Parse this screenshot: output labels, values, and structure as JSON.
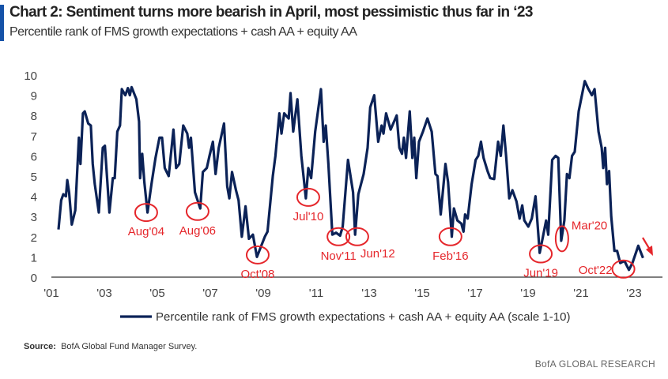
{
  "header": {
    "title": "Chart 2: Sentiment turns more bearish in April, most pessimistic thus far in ‘23",
    "subtitle": "Percentile rank of FMS growth expectations + cash AA + equity AA"
  },
  "footer": {
    "source_label": "Source:",
    "source_text": "BofA Global Fund Manager Survey.",
    "brand": "BofA GLOBAL RESEARCH"
  },
  "colors": {
    "line": "#0b2257",
    "annotation": "#e5262b",
    "accent": "#1552a8"
  },
  "chart_data": {
    "type": "line",
    "title": "Chart 2: Sentiment turns more bearish in April, most pessimistic thus far in ‘23",
    "xlabel": "",
    "ylabel": "",
    "xlim": [
      2001,
      2024
    ],
    "ylim": [
      0,
      10
    ],
    "grid": false,
    "legend_position": "bottom",
    "x_ticks": [
      {
        "v": 2001,
        "label": "'01"
      },
      {
        "v": 2003,
        "label": "'03"
      },
      {
        "v": 2005,
        "label": "'05"
      },
      {
        "v": 2007,
        "label": "'07"
      },
      {
        "v": 2009,
        "label": "'09"
      },
      {
        "v": 2011,
        "label": "'11"
      },
      {
        "v": 2013,
        "label": "'13"
      },
      {
        "v": 2015,
        "label": "'15"
      },
      {
        "v": 2017,
        "label": "'17"
      },
      {
        "v": 2019,
        "label": "'19"
      },
      {
        "v": 2021,
        "label": "'21"
      },
      {
        "v": 2023,
        "label": "'23"
      }
    ],
    "y_ticks": [
      "0",
      "1",
      "2",
      "3",
      "4",
      "5",
      "6",
      "7",
      "8",
      "9",
      "10"
    ],
    "series": [
      {
        "name": "Percentile rank of FMS growth expectations + cash AA + equity AA (scale 1-10)",
        "x": [
          2001.27,
          2001.37,
          2001.45,
          2001.55,
          2001.6,
          2001.67,
          2001.77,
          2001.9,
          2002.04,
          2002.1,
          2002.19,
          2002.26,
          2002.39,
          2002.49,
          2002.56,
          2002.64,
          2002.79,
          2002.94,
          2003.02,
          2003.19,
          2003.32,
          2003.39,
          2003.49,
          2003.59,
          2003.66,
          2003.79,
          2003.89,
          2003.96,
          2004.03,
          2004.21,
          2004.31,
          2004.35,
          2004.43,
          2004.51,
          2004.63,
          2004.78,
          2004.93,
          2005.08,
          2005.18,
          2005.28,
          2005.43,
          2005.61,
          2005.71,
          2005.83,
          2005.98,
          2006.13,
          2006.2,
          2006.27,
          2006.42,
          2006.62,
          2006.72,
          2006.87,
          2006.97,
          2007.1,
          2007.2,
          2007.32,
          2007.52,
          2007.64,
          2007.72,
          2007.82,
          2007.97,
          2008.07,
          2008.19,
          2008.33,
          2008.46,
          2008.61,
          2008.76,
          2008.91,
          2009.06,
          2009.16,
          2009.36,
          2009.46,
          2009.61,
          2009.69,
          2009.79,
          2009.96,
          2010.03,
          2010.13,
          2010.29,
          2010.44,
          2010.61,
          2010.7,
          2010.81,
          2010.96,
          2011.18,
          2011.28,
          2011.36,
          2011.46,
          2011.61,
          2011.75,
          2011.9,
          2012.0,
          2012.2,
          2012.39,
          2012.47,
          2012.59,
          2012.79,
          2012.94,
          2013.04,
          2013.19,
          2013.34,
          2013.47,
          2013.54,
          2013.64,
          2013.81,
          2014.04,
          2014.14,
          2014.24,
          2014.31,
          2014.39,
          2014.53,
          2014.63,
          2014.7,
          2014.78,
          2014.88,
          2015.03,
          2015.2,
          2015.36,
          2015.5,
          2015.58,
          2015.7,
          2015.88,
          2015.98,
          2016.12,
          2016.2,
          2016.33,
          2016.48,
          2016.56,
          2016.62,
          2016.72,
          2016.87,
          2017.02,
          2017.12,
          2017.22,
          2017.32,
          2017.47,
          2017.57,
          2017.72,
          2017.87,
          2017.97,
          2018.07,
          2018.17,
          2018.29,
          2018.41,
          2018.56,
          2018.68,
          2018.78,
          2018.86,
          2019.01,
          2019.14,
          2019.28,
          2019.44,
          2019.56,
          2019.68,
          2019.76,
          2019.91,
          2020.04,
          2020.14,
          2020.25,
          2020.37,
          2020.47,
          2020.56,
          2020.66,
          2020.76,
          2020.91,
          2021.14,
          2021.28,
          2021.41,
          2021.51,
          2021.66,
          2021.78,
          2021.84,
          2021.91,
          2021.98,
          2022.06,
          2022.14,
          2022.26,
          2022.36,
          2022.48,
          2022.64,
          2022.81,
          2022.94,
          2023.16,
          2023.34
        ],
        "values": [
          2.36,
          3.8,
          4.1,
          4.0,
          4.8,
          4.2,
          2.6,
          3.3,
          6.9,
          5.6,
          8.1,
          8.2,
          7.6,
          7.5,
          5.6,
          4.6,
          3.2,
          6.4,
          6.5,
          3.2,
          4.9,
          4.9,
          7.2,
          7.5,
          9.3,
          9.0,
          9.35,
          9.0,
          9.4,
          8.8,
          7.7,
          4.9,
          6.1,
          4.7,
          3.2,
          4.6,
          5.9,
          6.9,
          6.9,
          5.4,
          5.0,
          7.3,
          5.4,
          5.6,
          7.5,
          7.1,
          6.4,
          6.9,
          4.2,
          3.4,
          5.2,
          5.4,
          6.0,
          6.7,
          5.1,
          6.4,
          7.6,
          4.5,
          3.9,
          5.2,
          4.3,
          3.8,
          2.0,
          3.5,
          1.9,
          2.1,
          1.0,
          1.5,
          2.0,
          2.25,
          5.0,
          6.0,
          8.1,
          7.1,
          8.1,
          7.85,
          9.1,
          7.2,
          8.8,
          6.0,
          3.9,
          5.4,
          4.9,
          7.2,
          9.3,
          6.7,
          7.5,
          5.6,
          2.1,
          2.2,
          2.05,
          2.5,
          5.8,
          4.2,
          2.1,
          4.1,
          5.1,
          6.4,
          8.4,
          9.0,
          6.7,
          7.5,
          7.1,
          8.1,
          7.3,
          8.0,
          6.4,
          6.1,
          6.9,
          5.9,
          8.2,
          5.9,
          6.9,
          4.9,
          6.7,
          7.2,
          7.85,
          7.2,
          5.1,
          5.0,
          3.1,
          5.6,
          4.7,
          2.0,
          3.4,
          2.8,
          2.65,
          2.25,
          3.1,
          2.9,
          4.6,
          5.8,
          6.0,
          6.7,
          5.9,
          5.25,
          4.9,
          4.85,
          6.7,
          6.0,
          7.5,
          6.0,
          3.9,
          4.3,
          3.75,
          2.9,
          3.55,
          2.8,
          2.5,
          2.9,
          4.0,
          1.2,
          2.0,
          2.8,
          2.1,
          5.8,
          6.0,
          5.9,
          1.8,
          2.8,
          5.1,
          4.9,
          6.0,
          6.2,
          8.2,
          9.7,
          9.3,
          9.0,
          9.3,
          7.2,
          6.4,
          5.4,
          6.4,
          4.6,
          5.25,
          3.0,
          1.3,
          1.3,
          0.7,
          0.8,
          0.36,
          0.7,
          1.55,
          0.95
        ]
      }
    ],
    "annotations": [
      {
        "label": "Aug'04",
        "x": 2004.58,
        "y": 3.2,
        "pos": "below"
      },
      {
        "label": "Aug'06",
        "x": 2006.52,
        "y": 3.25,
        "pos": "below"
      },
      {
        "label": "Oct'08",
        "x": 2008.79,
        "y": 1.1,
        "pos": "below"
      },
      {
        "label": "Jul'10",
        "x": 2010.7,
        "y": 3.95,
        "pos": "below"
      },
      {
        "label": "Nov'11",
        "x": 2011.84,
        "y": 2.0,
        "pos": "below"
      },
      {
        "label": "Jun'12",
        "x": 2012.55,
        "y": 2.0,
        "pos": "below-right"
      },
      {
        "label": "Feb'16",
        "x": 2016.07,
        "y": 2.0,
        "pos": "below"
      },
      {
        "label": "Jun'19",
        "x": 2019.48,
        "y": 1.15,
        "pos": "below"
      },
      {
        "label": "Mar'20",
        "x": 2020.28,
        "y": 1.9,
        "pos": "above-right"
      },
      {
        "label": "Oct'22",
        "x": 2022.6,
        "y": 0.4,
        "pos": "left"
      }
    ]
  }
}
